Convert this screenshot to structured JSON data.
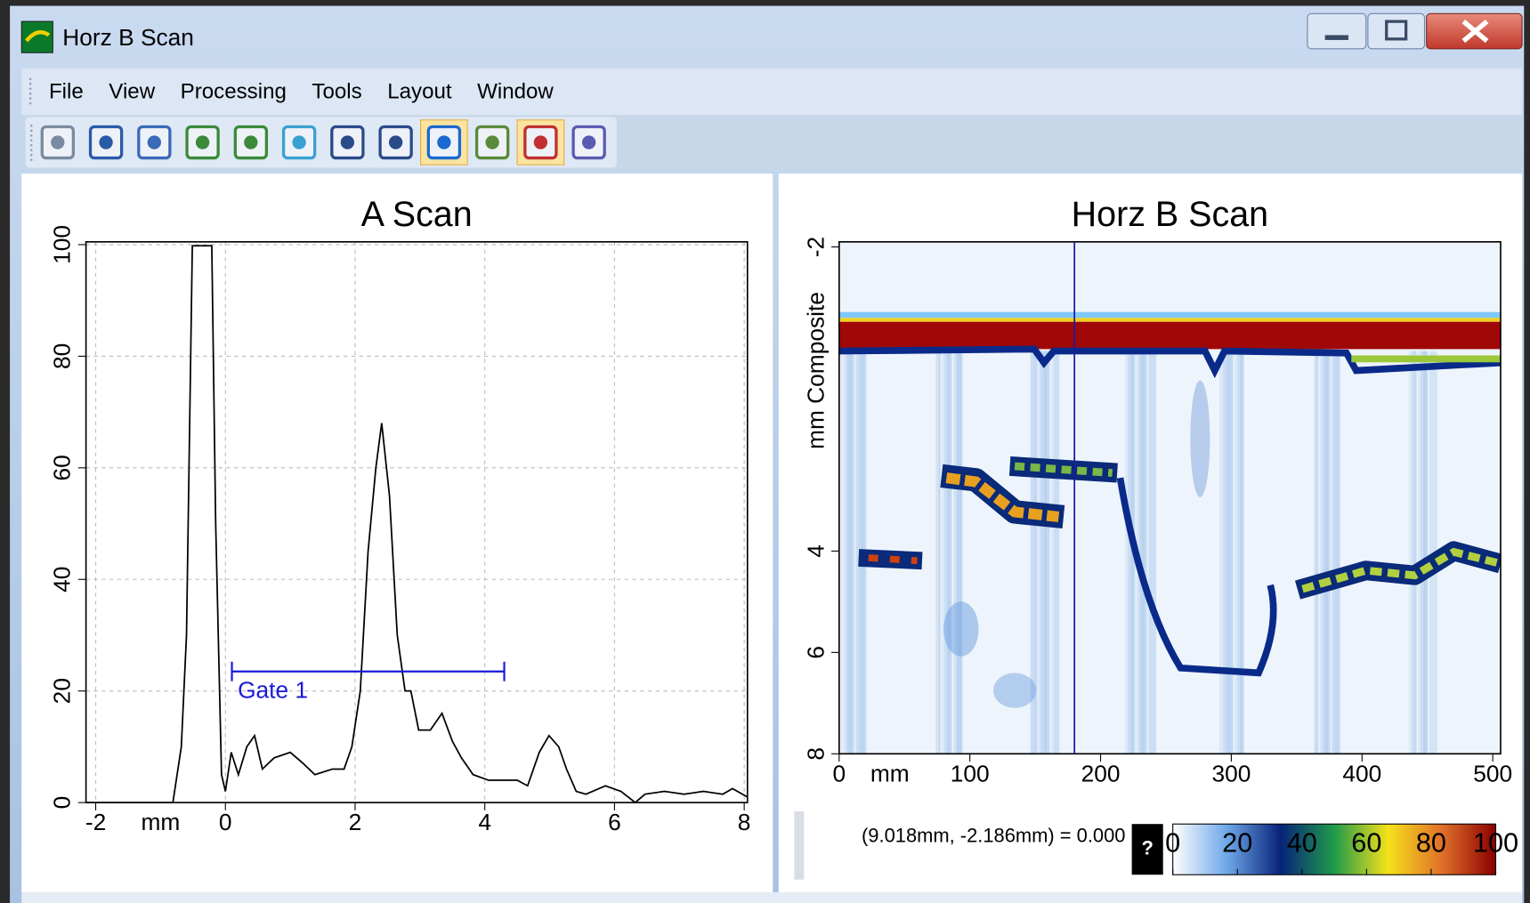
{
  "window": {
    "title": "Horz B Scan"
  },
  "menu": [
    "File",
    "View",
    "Processing",
    "Tools",
    "Layout",
    "Window"
  ],
  "chart_data": [
    {
      "type": "line",
      "title": "A Scan",
      "x_label": "mm",
      "color": "#000000",
      "x": [
        -2.15,
        -0.81,
        -0.68,
        -0.6,
        -0.51,
        -0.21,
        -0.15,
        -0.06,
        0,
        0.09,
        0.2,
        0.33,
        0.45,
        0.57,
        0.75,
        1.0,
        1.2,
        1.38,
        1.65,
        1.83,
        1.95,
        2.08,
        2.2,
        2.32,
        2.41,
        2.53,
        2.65,
        2.77,
        2.86,
        2.98,
        3.16,
        3.34,
        3.5,
        3.64,
        3.82,
        4.06,
        4.5,
        4.66,
        4.84,
        4.99,
        5.14,
        5.26,
        5.41,
        5.56,
        5.86,
        6.1,
        6.32,
        6.47,
        6.77,
        7.07,
        7.37,
        7.67,
        7.82,
        8.05
      ],
      "values": [
        0,
        0,
        10,
        30,
        99.8,
        99.8,
        50,
        5,
        2,
        9,
        5,
        10,
        12,
        6,
        8,
        9,
        7,
        5,
        6,
        6,
        10,
        20,
        45,
        60,
        68,
        55,
        30,
        20,
        20,
        13,
        13,
        16,
        11,
        8,
        5,
        4,
        4,
        3,
        9,
        12,
        10,
        6,
        2,
        1.5,
        3,
        2,
        0,
        1.5,
        2,
        1.5,
        2,
        1.5,
        2.5,
        1
      ],
      "xlim": [
        -2.15,
        8.05
      ],
      "ylim": [
        0,
        100.5
      ],
      "xticks": [
        -2,
        0,
        2,
        4,
        6,
        8
      ],
      "yticks": [
        0,
        20,
        40,
        60,
        80,
        100
      ],
      "grid": true,
      "gate": {
        "label": "Gate 1",
        "start": 0.1,
        "end": 4.3,
        "level": 23.5,
        "color": "#1a1ad8"
      }
    },
    {
      "type": "heatmap",
      "title": "Horz B Scan",
      "x_label": "mm",
      "y_label": "mm Composite",
      "xlim": [
        0,
        506
      ],
      "ylim": [
        -2.1,
        8
      ],
      "xticks": [
        0,
        100,
        200,
        300,
        400,
        500
      ],
      "yticks": [
        -2,
        4,
        6,
        8
      ],
      "cursor_x": 180,
      "cursor_color": "#1a1aa8",
      "colorbar": {
        "range": [
          0,
          100
        ],
        "ticks": [
          0,
          20,
          40,
          60,
          80,
          100
        ],
        "colors": [
          "#ffffff",
          "#6fa8e8",
          "#08237a",
          "#1f9a4a",
          "#f5e21a",
          "#e0702a",
          "#8b0000"
        ]
      }
    }
  ],
  "status": "(9.018mm, -2.186mm) = 0.000",
  "help": "?"
}
